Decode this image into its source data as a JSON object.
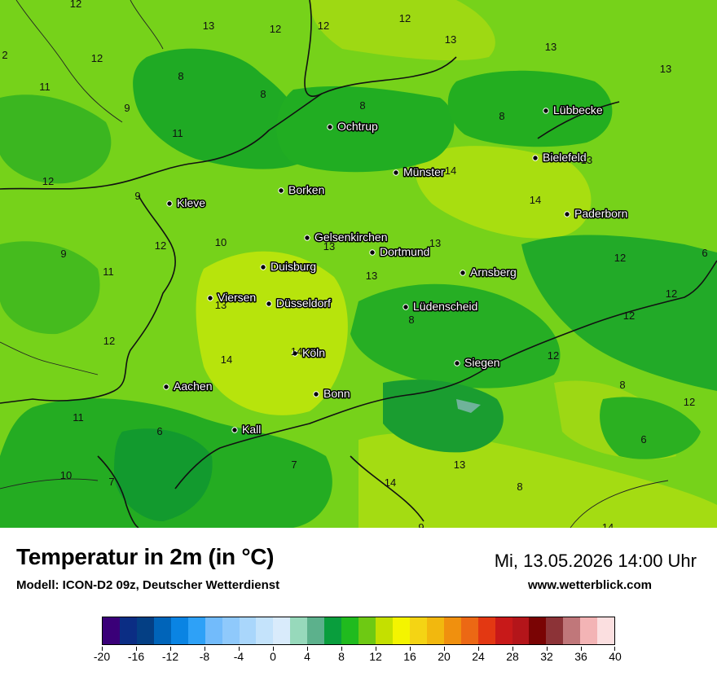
{
  "title": "Temperatur in 2m (in °C)",
  "model": "Modell: ICON-D2 09z, Deutscher Wetterdienst",
  "valid_time": "Mi, 13.05.2026 14:00 Uhr",
  "website": "www.wetterblick.com",
  "colorbar": {
    "colors": [
      "#3a0078",
      "#0b2d84",
      "#043f84",
      "#0064b9",
      "#0a84e3",
      "#2ea1f7",
      "#72bbfb",
      "#8fc9fb",
      "#a9d6fb",
      "#c4e3fb",
      "#d9ebfb",
      "#97d9bb",
      "#5cb18c",
      "#099e3d",
      "#20bb1e",
      "#6ec913",
      "#c4e000",
      "#f4f400",
      "#f4d414",
      "#f2b80e",
      "#f0900e",
      "#ec6814",
      "#e33812",
      "#c81919",
      "#b4151a",
      "#7a0404",
      "#8c3337",
      "#c0777a",
      "#f3b4b5",
      "#fbdfe0"
    ],
    "tick_labels": [
      "-20",
      "-16",
      "-12",
      "-8",
      "-4",
      "0",
      "4",
      "8",
      "12",
      "16",
      "20",
      "24",
      "28",
      "32",
      "36",
      "40"
    ]
  },
  "cities": [
    {
      "name": "Ochtrup"
    },
    {
      "name": "Lübbecke"
    },
    {
      "name": "Bielefeld"
    },
    {
      "name": "Münster"
    },
    {
      "name": "Borken"
    },
    {
      "name": "Kleve"
    },
    {
      "name": "Paderborn"
    },
    {
      "name": "Gelsenkirchen"
    },
    {
      "name": "Dortmund"
    },
    {
      "name": "Duisburg"
    },
    {
      "name": "Arnsberg"
    },
    {
      "name": "Viersen"
    },
    {
      "name": "Düsseldorf"
    },
    {
      "name": "Lüdenscheid"
    },
    {
      "name": "Köln"
    },
    {
      "name": "Siegen"
    },
    {
      "name": "Aachen"
    },
    {
      "name": "Bonn"
    },
    {
      "name": "Kall"
    }
  ],
  "isotherm_labels": [
    "12",
    "13",
    "12",
    "12",
    "12",
    "13",
    "2",
    "12",
    "11",
    "8",
    "8",
    "9",
    "8",
    "11",
    "8",
    "13",
    "13",
    "12",
    "9",
    "14",
    "14",
    "13",
    "12",
    "10",
    "9",
    "11",
    "13",
    "13",
    "13",
    "12",
    "6",
    "12",
    "8",
    "12",
    "13",
    "14",
    "14",
    "12",
    "8",
    "12",
    "11",
    "6",
    "7",
    "10",
    "7",
    "13",
    "14",
    "8",
    "6",
    "12",
    "9",
    "14"
  ]
}
